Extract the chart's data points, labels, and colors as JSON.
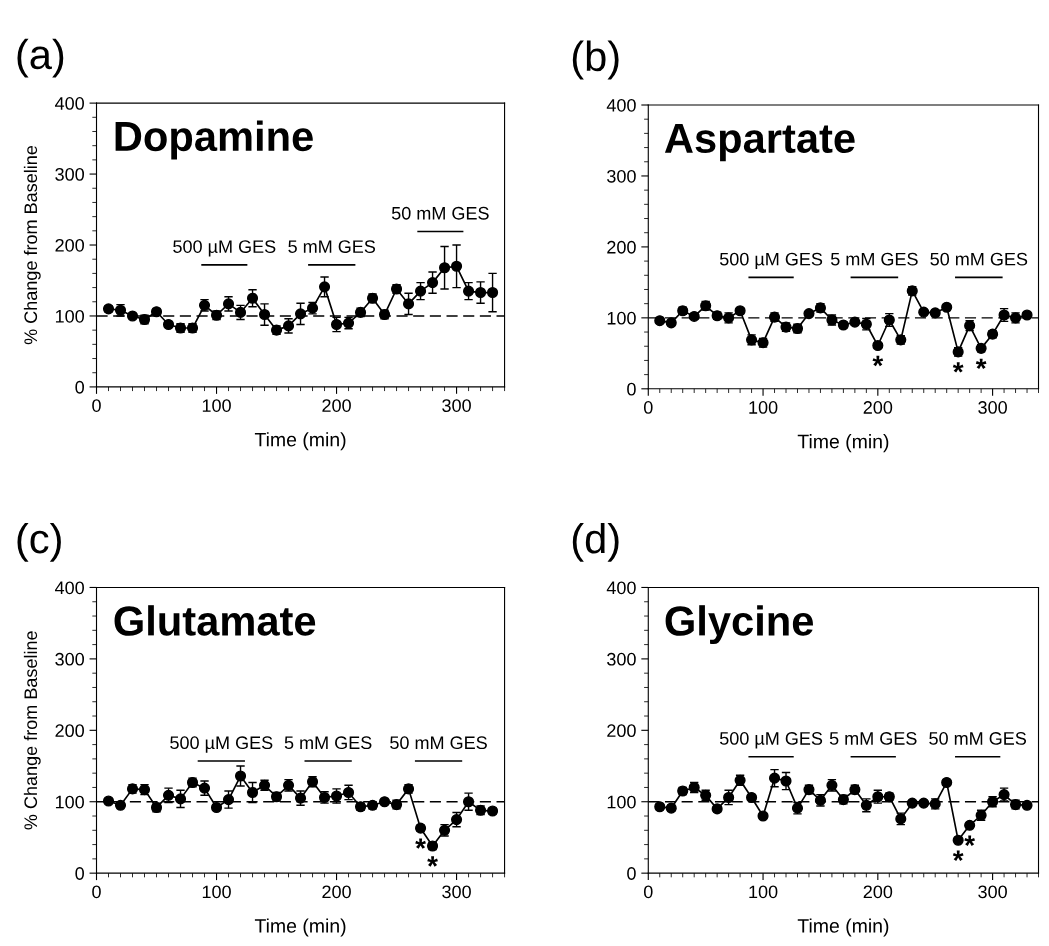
{
  "chart_data": [
    {
      "type": "line",
      "title": "(a)",
      "subtitle": "Dopamine",
      "xlabel": "Time (min)",
      "ylabel": "% Change from Baseline",
      "xlim": [
        0,
        340
      ],
      "xticks": [
        0,
        100,
        200,
        300
      ],
      "ylim": [
        0,
        400
      ],
      "yticks": [
        0,
        100,
        200,
        300,
        400
      ],
      "grid": false,
      "legend": false,
      "marker": "circle",
      "line_style": "solid",
      "x": [
        10,
        20,
        30,
        40,
        50,
        60,
        70,
        80,
        90,
        100,
        110,
        120,
        130,
        140,
        150,
        160,
        170,
        180,
        190,
        200,
        210,
        220,
        230,
        240,
        250,
        260,
        270,
        280,
        290,
        300,
        310,
        320,
        330
      ],
      "series": [
        {
          "color": "#000000",
          "values": [
            110,
            108,
            100,
            95,
            106,
            88,
            83,
            83,
            115,
            101,
            117,
            105,
            125,
            102,
            80,
            86,
            103,
            111,
            141,
            88,
            90,
            105,
            125,
            102,
            138,
            117,
            135,
            147,
            168,
            170,
            135,
            133,
            133
          ],
          "errors": [
            4,
            8,
            3,
            6,
            4,
            4,
            6,
            6,
            8,
            6,
            10,
            10,
            12,
            15,
            6,
            10,
            15,
            8,
            14,
            10,
            8,
            6,
            6,
            6,
            6,
            15,
            12,
            15,
            30,
            30,
            12,
            15,
            27
          ]
        },
        {
          "type": "line",
          "name": "500 µM GES",
          "color": "#000000",
          "marker": "none",
          "x": [
            88,
            125
          ],
          "values": [
            172,
            172
          ]
        },
        {
          "type": "line",
          "name": "5 mM GES",
          "color": "#000000",
          "marker": "none",
          "x": [
            177,
            215
          ],
          "values": [
            172,
            172
          ]
        },
        {
          "type": "line",
          "name": "50 mM GES",
          "color": "#000000",
          "marker": "none",
          "x": [
            268,
            305
          ],
          "values": [
            219,
            219
          ]
        }
      ],
      "ref_lines": [
        {
          "axis": "y",
          "value": 100,
          "line_style": "dashed",
          "color": "#000000"
        }
      ]
    },
    {
      "type": "line",
      "title": "(b)",
      "subtitle": "Aspartate",
      "xlabel": "Time (min)",
      "xlim": [
        0,
        340
      ],
      "xticks": [
        0,
        100,
        200,
        300
      ],
      "ylim": [
        0,
        400
      ],
      "yticks": [
        0,
        100,
        200,
        300,
        400
      ],
      "grid": false,
      "legend": false,
      "marker": "circle",
      "line_style": "solid",
      "x": [
        10,
        20,
        30,
        40,
        50,
        60,
        70,
        80,
        90,
        100,
        110,
        120,
        130,
        140,
        150,
        160,
        170,
        180,
        190,
        200,
        210,
        220,
        230,
        240,
        250,
        260,
        270,
        280,
        290,
        300,
        310,
        320,
        330
      ],
      "series": [
        {
          "color": "#000000",
          "values": [
            96,
            93,
            110,
            102,
            117,
            103,
            100,
            110,
            69,
            65,
            101,
            87,
            85,
            106,
            114,
            97,
            90,
            94,
            91,
            61,
            97,
            69,
            138,
            108,
            107,
            115,
            52,
            89,
            57,
            77,
            104,
            100,
            104
          ],
          "errors": [
            3,
            3,
            5,
            4,
            6,
            5,
            7,
            4,
            7,
            6,
            6,
            6,
            6,
            3,
            6,
            7,
            4,
            4,
            8,
            4,
            9,
            6,
            6,
            3,
            4,
            3,
            6,
            7,
            5,
            5,
            9,
            7,
            3
          ]
        },
        {
          "type": "line",
          "name": "500 µM GES",
          "color": "#000000",
          "marker": "none",
          "x": [
            88,
            126
          ],
          "values": [
            157,
            157
          ]
        },
        {
          "type": "line",
          "name": "5 mM GES",
          "color": "#000000",
          "marker": "none",
          "x": [
            177,
            217
          ],
          "values": [
            157,
            157
          ]
        },
        {
          "type": "line",
          "name": "50 mM GES",
          "color": "#000000",
          "marker": "none",
          "x": [
            268,
            308
          ],
          "values": [
            157,
            157
          ]
        }
      ],
      "ref_lines": [
        {
          "axis": "y",
          "value": 100,
          "line_style": "dashed",
          "color": "#000000"
        }
      ],
      "annotations": [
        {
          "text": "*",
          "x": 200,
          "y": 61
        },
        {
          "text": "*",
          "x": 270,
          "y": 52
        },
        {
          "text": "*",
          "x": 290,
          "y": 57
        }
      ]
    },
    {
      "type": "line",
      "title": "(c)",
      "subtitle": "Glutamate",
      "xlabel": "Time (min)",
      "ylabel": "% Change from Baseline",
      "xlim": [
        0,
        340
      ],
      "xticks": [
        0,
        100,
        200,
        300
      ],
      "ylim": [
        0,
        400
      ],
      "yticks": [
        0,
        100,
        200,
        300,
        400
      ],
      "grid": false,
      "legend": false,
      "marker": "circle",
      "line_style": "solid",
      "x": [
        10,
        20,
        30,
        40,
        50,
        60,
        70,
        80,
        90,
        100,
        110,
        120,
        130,
        140,
        150,
        160,
        170,
        180,
        190,
        200,
        210,
        220,
        230,
        240,
        250,
        260,
        270,
        280,
        290,
        300,
        310,
        320,
        330
      ],
      "series": [
        {
          "color": "#000000",
          "values": [
            101,
            95,
            118,
            117,
            92,
            109,
            104,
            127,
            119,
            92,
            103,
            136,
            113,
            123,
            107,
            123,
            105,
            128,
            106,
            108,
            113,
            93,
            95,
            100,
            96,
            118,
            63,
            38,
            60,
            75,
            100,
            88,
            87
          ],
          "errors": [
            3,
            3,
            6,
            7,
            6,
            10,
            12,
            6,
            10,
            4,
            12,
            14,
            14,
            7,
            6,
            8,
            10,
            7,
            8,
            10,
            10,
            5,
            5,
            3,
            6,
            6,
            4,
            5,
            8,
            10,
            12,
            6,
            4
          ]
        },
        {
          "type": "line",
          "name": "500 µM GES",
          "color": "#000000",
          "marker": "none",
          "x": [
            85,
            123
          ],
          "values": [
            157,
            157
          ]
        },
        {
          "type": "line",
          "name": "5 mM GES",
          "color": "#000000",
          "marker": "none",
          "x": [
            174,
            212
          ],
          "values": [
            157,
            157
          ]
        },
        {
          "type": "line",
          "name": "50 mM GES",
          "color": "#000000",
          "marker": "none",
          "x": [
            266,
            304
          ],
          "values": [
            157,
            157
          ]
        }
      ],
      "ref_lines": [
        {
          "axis": "y",
          "value": 100,
          "line_style": "dashed",
          "color": "#000000"
        }
      ],
      "annotations": [
        {
          "text": "*",
          "x": 270,
          "y": 63
        },
        {
          "text": "*",
          "x": 280,
          "y": 38
        }
      ]
    },
    {
      "type": "line",
      "title": "(d)",
      "subtitle": "Glycine",
      "xlabel": "Time (min)",
      "xlim": [
        0,
        340
      ],
      "xticks": [
        0,
        100,
        200,
        300
      ],
      "ylim": [
        0,
        400
      ],
      "yticks": [
        0,
        100,
        200,
        300,
        400
      ],
      "grid": false,
      "legend": false,
      "marker": "circle",
      "line_style": "solid",
      "x": [
        10,
        20,
        30,
        40,
        50,
        60,
        70,
        80,
        90,
        100,
        110,
        120,
        130,
        140,
        150,
        160,
        170,
        180,
        190,
        200,
        210,
        220,
        230,
        240,
        250,
        260,
        270,
        280,
        290,
        300,
        310,
        320,
        330
      ],
      "series": [
        {
          "color": "#000000",
          "values": [
            93,
            91,
            115,
            120,
            109,
            90,
            106,
            130,
            106,
            80,
            133,
            129,
            91,
            117,
            102,
            123,
            103,
            117,
            95,
            107,
            107,
            76,
            98,
            98,
            97,
            127,
            46,
            67,
            81,
            100,
            110,
            96,
            95
          ],
          "errors": [
            4,
            4,
            5,
            7,
            7,
            4,
            10,
            7,
            3,
            3,
            12,
            12,
            8,
            6,
            8,
            8,
            6,
            6,
            9,
            9,
            5,
            8,
            3,
            3,
            7,
            4,
            3,
            3,
            7,
            7,
            9,
            6,
            4
          ]
        },
        {
          "type": "line",
          "name": "500 µM GES",
          "color": "#000000",
          "marker": "none",
          "x": [
            88,
            126
          ],
          "values": [
            163,
            163
          ]
        },
        {
          "type": "line",
          "name": "5 mM GES",
          "color": "#000000",
          "marker": "none",
          "x": [
            177,
            215
          ],
          "values": [
            163,
            163
          ]
        },
        {
          "type": "line",
          "name": "50 mM GES",
          "color": "#000000",
          "marker": "none",
          "x": [
            268,
            306
          ],
          "values": [
            163,
            163
          ]
        }
      ],
      "ref_lines": [
        {
          "axis": "y",
          "value": 100,
          "line_style": "dashed",
          "color": "#000000"
        }
      ],
      "annotations": [
        {
          "text": "*",
          "x": 270,
          "y": 46
        },
        {
          "text": "*",
          "x": 280,
          "y": 67
        }
      ]
    }
  ]
}
